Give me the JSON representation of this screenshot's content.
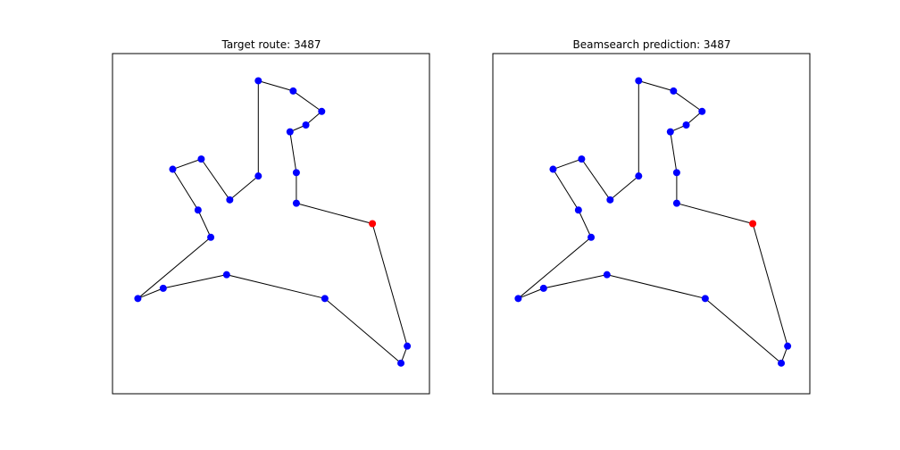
{
  "colors": {
    "node": "#0000ff",
    "start_node": "#ff0000",
    "edge": "#000000",
    "frame": "#000000"
  },
  "chart_data": [
    {
      "type": "scatter",
      "title": "Target route: 3487",
      "xlim": [
        0,
        1
      ],
      "ylim": [
        0,
        1
      ],
      "ticks": "hidden",
      "grid": false,
      "start": [
        0.82,
        0.5
      ],
      "route": [
        [
          0.82,
          0.5
        ],
        [
          0.93,
          0.14
        ],
        [
          0.91,
          0.09
        ],
        [
          0.67,
          0.28
        ],
        [
          0.36,
          0.35
        ],
        [
          0.16,
          0.31
        ],
        [
          0.08,
          0.28
        ],
        [
          0.31,
          0.46
        ],
        [
          0.27,
          0.54
        ],
        [
          0.19,
          0.66
        ],
        [
          0.28,
          0.69
        ],
        [
          0.37,
          0.57
        ],
        [
          0.46,
          0.64
        ],
        [
          0.46,
          0.92
        ],
        [
          0.57,
          0.89
        ],
        [
          0.66,
          0.83
        ],
        [
          0.61,
          0.79
        ],
        [
          0.56,
          0.77
        ],
        [
          0.58,
          0.65
        ],
        [
          0.58,
          0.56
        ],
        [
          0.82,
          0.5
        ]
      ]
    },
    {
      "type": "scatter",
      "title": "Beamsearch prediction: 3487",
      "xlim": [
        0,
        1
      ],
      "ylim": [
        0,
        1
      ],
      "ticks": "hidden",
      "grid": false,
      "start": [
        0.82,
        0.5
      ],
      "route": [
        [
          0.82,
          0.5
        ],
        [
          0.93,
          0.14
        ],
        [
          0.91,
          0.09
        ],
        [
          0.67,
          0.28
        ],
        [
          0.36,
          0.35
        ],
        [
          0.16,
          0.31
        ],
        [
          0.08,
          0.28
        ],
        [
          0.31,
          0.46
        ],
        [
          0.27,
          0.54
        ],
        [
          0.19,
          0.66
        ],
        [
          0.28,
          0.69
        ],
        [
          0.37,
          0.57
        ],
        [
          0.46,
          0.64
        ],
        [
          0.46,
          0.92
        ],
        [
          0.57,
          0.89
        ],
        [
          0.66,
          0.83
        ],
        [
          0.61,
          0.79
        ],
        [
          0.56,
          0.77
        ],
        [
          0.58,
          0.65
        ],
        [
          0.58,
          0.56
        ],
        [
          0.82,
          0.5
        ]
      ]
    }
  ]
}
